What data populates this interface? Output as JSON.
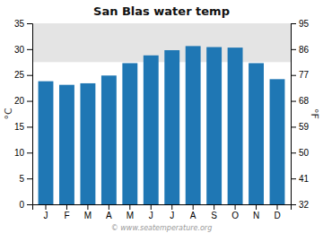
{
  "chart_data": {
    "type": "bar",
    "title": "San Blas water temp",
    "categories": [
      "J",
      "F",
      "M",
      "A",
      "M",
      "J",
      "J",
      "A",
      "S",
      "O",
      "N",
      "D"
    ],
    "values": [
      23.8,
      23.1,
      23.4,
      24.9,
      27.3,
      28.8,
      29.8,
      30.6,
      30.4,
      30.3,
      27.3,
      24.2
    ],
    "ylim": [
      0,
      35
    ],
    "yticks": [
      0,
      5,
      10,
      15,
      20,
      25,
      30,
      35
    ],
    "y2lim": [
      32,
      95
    ],
    "y2ticks": [
      32,
      41,
      50,
      59,
      68,
      77,
      86,
      95
    ],
    "ylabel": "°C",
    "y2label": "°F",
    "shading": {
      "ymin": 27.5,
      "ymax": 35,
      "color": "#e4e4e4"
    },
    "annotations": [
      "© www.seatemperature.org"
    ],
    "grid": false
  }
}
